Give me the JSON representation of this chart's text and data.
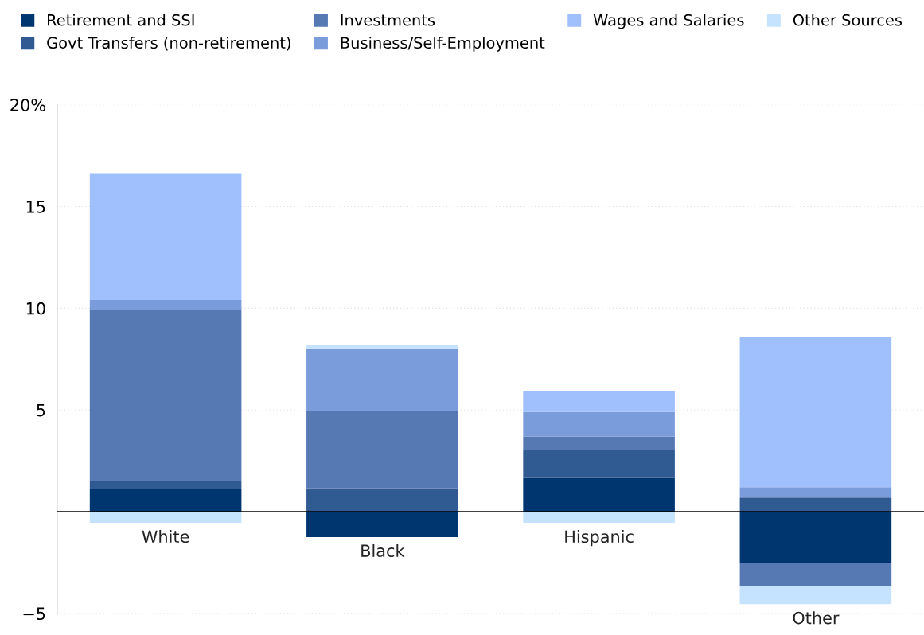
{
  "chart_data": {
    "type": "bar",
    "stacked": true,
    "categories": [
      "White",
      "Black",
      "Hispanic",
      "Other"
    ],
    "series": [
      {
        "name": "Retirement and SSI",
        "color": "#003670",
        "values": [
          1.1,
          -1.25,
          1.65,
          -2.5
        ]
      },
      {
        "name": "Govt Transfers (non-retirement)",
        "color": "#2f5a92",
        "values": [
          0.4,
          1.15,
          1.4,
          0.7
        ]
      },
      {
        "name": "Investments",
        "color": "#5679b4",
        "values": [
          8.4,
          3.8,
          0.65,
          -1.15
        ]
      },
      {
        "name": "Business/Self-Employment",
        "color": "#7b9cdb",
        "values": [
          0.5,
          3.05,
          1.2,
          0.5
        ]
      },
      {
        "name": "Wages and Salaries",
        "color": "#a0bffd",
        "values": [
          6.2,
          0,
          1.05,
          7.4
        ]
      },
      {
        "name": "Other Sources",
        "color": "#c5e3ff",
        "values": [
          -0.55,
          0.2,
          -0.55,
          -0.9
        ]
      }
    ],
    "ylim": [
      -5,
      20
    ],
    "yticks": [
      {
        "value": -5,
        "label": "−5"
      },
      5,
      10,
      15,
      {
        "value": 20,
        "label": "20%"
      }
    ],
    "grid": "y",
    "legend": "top"
  }
}
